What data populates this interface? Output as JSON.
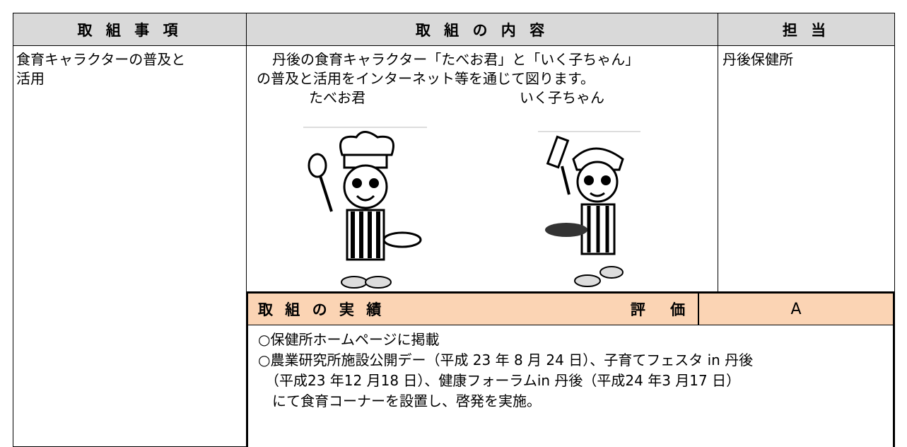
{
  "table": {
    "header": [
      "取 組 事 項",
      "取 組 の 内 容",
      "担 当"
    ],
    "item": [
      "食育キャラクターの普及と",
      "活用"
    ],
    "content": [
      "丹後の食育キャラクター「たべお君」と「いく子ちゃん」",
      "の普及と活用をインターネット等を通じて図ります。"
    ],
    "characters": [
      "たべお君",
      "いく子ちゃん"
    ],
    "owner": "丹後保健所",
    "results": {
      "header": [
        "取 組 の 実 績",
        "評 価",
        "A"
      ],
      "lines": [
        "○保健所ホームページに掲載",
        "○農業研究所施設公開デー（平成 23 年 8 月 24 日）、子育てフェスタ in 丹後",
        "（平成23 年12 月18 日）、健康フォーラムin 丹後（平成24 年3 月17 日）",
        "にて食育コーナーを設置し、啓発を実施。"
      ]
    }
  }
}
